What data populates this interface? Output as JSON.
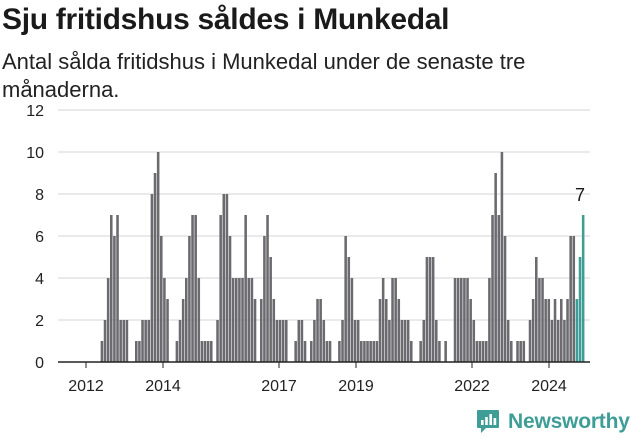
{
  "title": "Sju fritidshus såldes i Munkedal",
  "subtitle": "Antal sålda fritidshus i Munkedal under de senaste tre månaderna.",
  "brand": {
    "name": "Newsworthy",
    "color": "#3e9e97",
    "icon": "newsworthy-logo-icon"
  },
  "colors": {
    "bars": "#6b6b6f",
    "highlight": "#3e9e97",
    "grid": "#d5d5d5",
    "axis": "#222222"
  },
  "chart_data": {
    "type": "bar",
    "title": "Sju fritidshus såldes i Munkedal",
    "subtitle": "Antal sålda fritidshus i Munkedal under de senaste tre månaderna.",
    "xlabel": "",
    "ylabel": "",
    "ylim": [
      0,
      12
    ],
    "yticks": [
      0,
      2,
      4,
      6,
      8,
      10,
      12
    ],
    "xtick_labels": [
      "2012",
      "2014",
      "2017",
      "2019",
      "2022",
      "2024"
    ],
    "grid": true,
    "highlight_label": "7",
    "series": [
      {
        "values": [
          0,
          0,
          0,
          0,
          0,
          0,
          0,
          0,
          0,
          0,
          0,
          0,
          0,
          1,
          2,
          4,
          7,
          6,
          7,
          2,
          2,
          2,
          0,
          0,
          1,
          1,
          2,
          2,
          2,
          8,
          9,
          10,
          6,
          4,
          3,
          0,
          0,
          1,
          2,
          3,
          4,
          6,
          7,
          7,
          4,
          1,
          1,
          1,
          1,
          0,
          2,
          7,
          8,
          8,
          6,
          4,
          4,
          4,
          4,
          7,
          4,
          4,
          3,
          0,
          3,
          6,
          7,
          5,
          3,
          2,
          2,
          2,
          2,
          0,
          0,
          1,
          2,
          2,
          1,
          0,
          1,
          2,
          3,
          3,
          2,
          1,
          1,
          0,
          0,
          1,
          2,
          6,
          5,
          4,
          2,
          2,
          1,
          1,
          1,
          1,
          1,
          1,
          3,
          4,
          3,
          2,
          4,
          4,
          3,
          2,
          2,
          2,
          1,
          0,
          0,
          1,
          2,
          5,
          5,
          5,
          2,
          1,
          0,
          1,
          0,
          0,
          4,
          4,
          4,
          4,
          4,
          3,
          2,
          1,
          1,
          1,
          1,
          4,
          7,
          9,
          7,
          10,
          6,
          2,
          1,
          0,
          1,
          1,
          1,
          0,
          2,
          3,
          5,
          4,
          4,
          3,
          3,
          2,
          3,
          2,
          3,
          2,
          3,
          6,
          6,
          3,
          5,
          7
        ],
        "highlight_last": 3
      }
    ]
  }
}
